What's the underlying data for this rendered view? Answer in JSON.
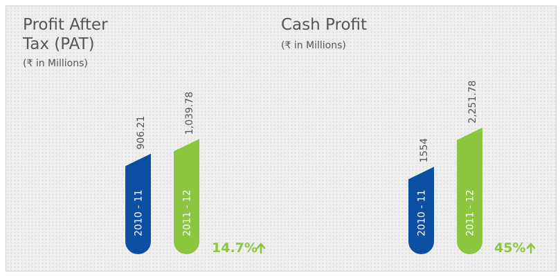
{
  "colors": {
    "bar_2010": "#0b4fa3",
    "bar_2011": "#8cc63f",
    "growth": "#8cc63f",
    "text": "#555555"
  },
  "chart_data": [
    {
      "type": "bar",
      "title_lines": [
        "Profit After",
        "Tax (PAT)"
      ],
      "unit": "(₹ in Millions)",
      "categories": [
        "2010 - 11",
        "2011 - 12"
      ],
      "values": [
        906.21,
        1039.78
      ],
      "value_labels": [
        "906.21",
        "1,039.78"
      ],
      "growth": "14.7%",
      "growth_icon": "arrow-up-icon"
    },
    {
      "type": "bar",
      "title_lines": [
        "Cash Profit"
      ],
      "unit": "(₹ in Millions)",
      "categories": [
        "2010 - 11",
        "2011 - 12"
      ],
      "values": [
        1554,
        2251.78
      ],
      "value_labels": [
        "1554",
        "2,251.78"
      ],
      "growth": "45%",
      "growth_icon": "arrow-up-icon"
    }
  ]
}
